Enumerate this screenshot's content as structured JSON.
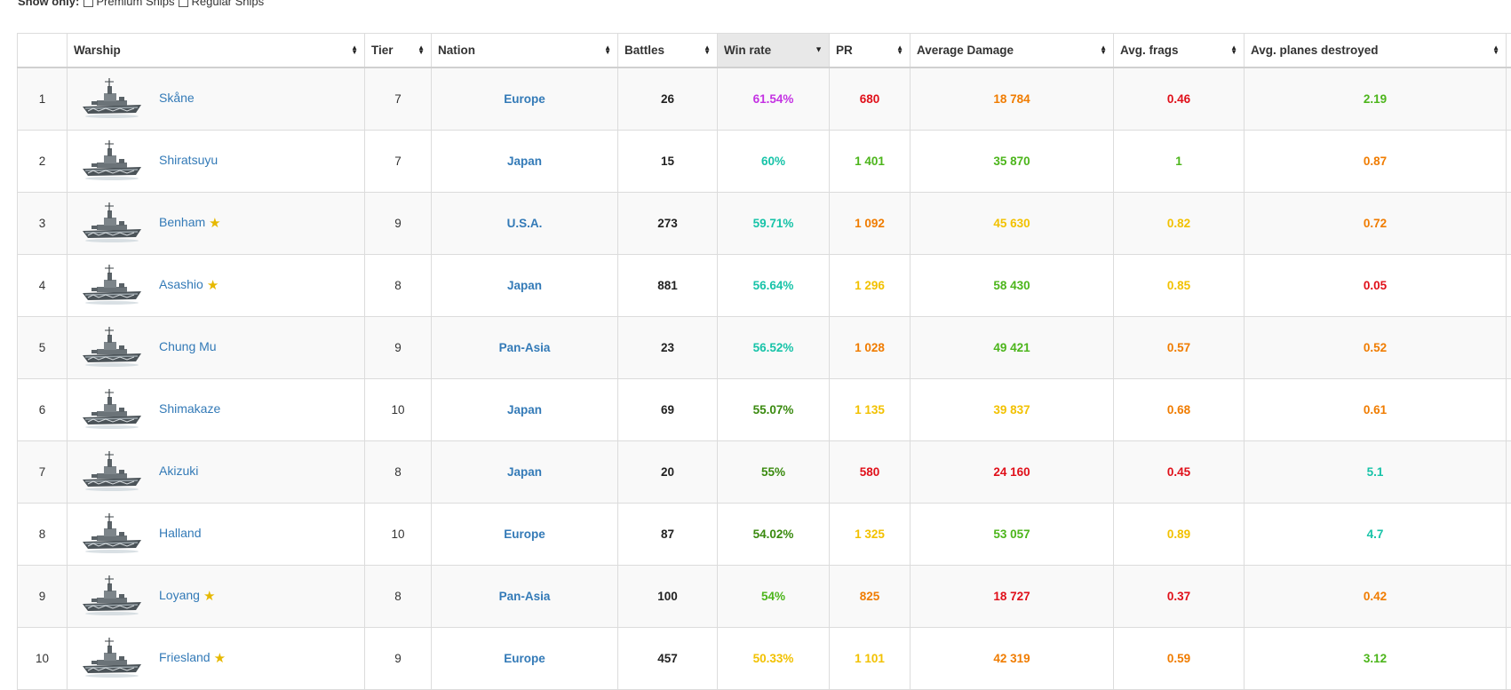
{
  "filter": {
    "label": "Show only:",
    "options": [
      "Premium Ships",
      "Regular Ships"
    ]
  },
  "headers": {
    "rank": "",
    "warship": "Warship",
    "tier": "Tier",
    "nation": "Nation",
    "battles": "Battles",
    "winrate": "Win rate",
    "pr": "PR",
    "damage": "Average Damage",
    "frags": "Avg. frags",
    "planes": "Avg. planes destroyed"
  },
  "colors": {
    "purple": "#c432e3",
    "cyan": "#17c3a8",
    "darkgreen": "#3a8a0f",
    "green": "#4cb51b",
    "yellow": "#f2c100",
    "orange": "#f07c00",
    "red": "#e0101a"
  },
  "rows": [
    {
      "rank": "1",
      "name": "Skåne",
      "premium": false,
      "tier": "7",
      "nation": "Europe",
      "battles": "26",
      "winrate": {
        "v": "61.54%",
        "c": "purple"
      },
      "pr": {
        "v": "680",
        "c": "red"
      },
      "damage": {
        "v": "18 784",
        "c": "orange"
      },
      "frags": {
        "v": "0.46",
        "c": "red"
      },
      "planes": {
        "v": "2.19",
        "c": "green"
      }
    },
    {
      "rank": "2",
      "name": "Shiratsuyu",
      "premium": false,
      "tier": "7",
      "nation": "Japan",
      "battles": "15",
      "winrate": {
        "v": "60%",
        "c": "cyan"
      },
      "pr": {
        "v": "1 401",
        "c": "green"
      },
      "damage": {
        "v": "35 870",
        "c": "green"
      },
      "frags": {
        "v": "1",
        "c": "green"
      },
      "planes": {
        "v": "0.87",
        "c": "orange"
      }
    },
    {
      "rank": "3",
      "name": "Benham",
      "premium": true,
      "tier": "9",
      "nation": "U.S.A.",
      "battles": "273",
      "winrate": {
        "v": "59.71%",
        "c": "cyan"
      },
      "pr": {
        "v": "1 092",
        "c": "orange"
      },
      "damage": {
        "v": "45 630",
        "c": "yellow"
      },
      "frags": {
        "v": "0.82",
        "c": "yellow"
      },
      "planes": {
        "v": "0.72",
        "c": "orange"
      }
    },
    {
      "rank": "4",
      "name": "Asashio",
      "premium": true,
      "tier": "8",
      "nation": "Japan",
      "battles": "881",
      "winrate": {
        "v": "56.64%",
        "c": "cyan"
      },
      "pr": {
        "v": "1 296",
        "c": "yellow"
      },
      "damage": {
        "v": "58 430",
        "c": "green"
      },
      "frags": {
        "v": "0.85",
        "c": "yellow"
      },
      "planes": {
        "v": "0.05",
        "c": "red"
      }
    },
    {
      "rank": "5",
      "name": "Chung Mu",
      "premium": false,
      "tier": "9",
      "nation": "Pan-Asia",
      "battles": "23",
      "winrate": {
        "v": "56.52%",
        "c": "cyan"
      },
      "pr": {
        "v": "1 028",
        "c": "orange"
      },
      "damage": {
        "v": "49 421",
        "c": "green"
      },
      "frags": {
        "v": "0.57",
        "c": "orange"
      },
      "planes": {
        "v": "0.52",
        "c": "orange"
      }
    },
    {
      "rank": "6",
      "name": "Shimakaze",
      "premium": false,
      "tier": "10",
      "nation": "Japan",
      "battles": "69",
      "winrate": {
        "v": "55.07%",
        "c": "darkgreen"
      },
      "pr": {
        "v": "1 135",
        "c": "yellow"
      },
      "damage": {
        "v": "39 837",
        "c": "yellow"
      },
      "frags": {
        "v": "0.68",
        "c": "orange"
      },
      "planes": {
        "v": "0.61",
        "c": "orange"
      }
    },
    {
      "rank": "7",
      "name": "Akizuki",
      "premium": false,
      "tier": "8",
      "nation": "Japan",
      "battles": "20",
      "winrate": {
        "v": "55%",
        "c": "darkgreen"
      },
      "pr": {
        "v": "580",
        "c": "red"
      },
      "damage": {
        "v": "24 160",
        "c": "red"
      },
      "frags": {
        "v": "0.45",
        "c": "red"
      },
      "planes": {
        "v": "5.1",
        "c": "cyan"
      }
    },
    {
      "rank": "8",
      "name": "Halland",
      "premium": false,
      "tier": "10",
      "nation": "Europe",
      "battles": "87",
      "winrate": {
        "v": "54.02%",
        "c": "darkgreen"
      },
      "pr": {
        "v": "1 325",
        "c": "yellow"
      },
      "damage": {
        "v": "53 057",
        "c": "green"
      },
      "frags": {
        "v": "0.89",
        "c": "yellow"
      },
      "planes": {
        "v": "4.7",
        "c": "cyan"
      }
    },
    {
      "rank": "9",
      "name": "Loyang",
      "premium": true,
      "tier": "8",
      "nation": "Pan-Asia",
      "battles": "100",
      "winrate": {
        "v": "54%",
        "c": "green"
      },
      "pr": {
        "v": "825",
        "c": "orange"
      },
      "damage": {
        "v": "18 727",
        "c": "red"
      },
      "frags": {
        "v": "0.37",
        "c": "red"
      },
      "planes": {
        "v": "0.42",
        "c": "orange"
      }
    },
    {
      "rank": "10",
      "name": "Friesland",
      "premium": true,
      "tier": "9",
      "nation": "Europe",
      "battles": "457",
      "winrate": {
        "v": "50.33%",
        "c": "yellow"
      },
      "pr": {
        "v": "1 101",
        "c": "yellow"
      },
      "damage": {
        "v": "42 319",
        "c": "orange"
      },
      "frags": {
        "v": "0.59",
        "c": "orange"
      },
      "planes": {
        "v": "3.12",
        "c": "green"
      }
    }
  ]
}
